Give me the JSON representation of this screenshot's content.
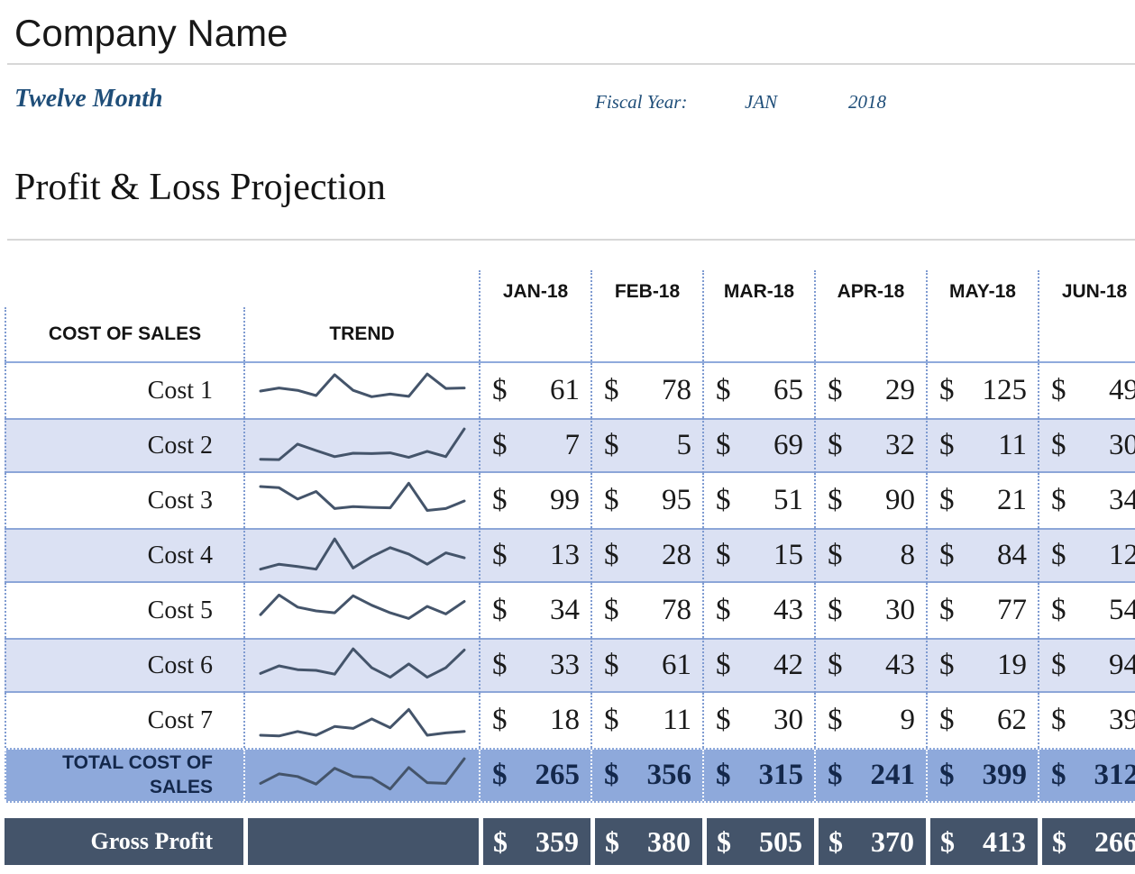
{
  "header": {
    "company_name": "Company Name",
    "subtitle": "Twelve Month",
    "fiscal_year_label": "Fiscal Year:",
    "fiscal_month": "JAN",
    "fiscal_year": "2018",
    "page_title": "Profit & Loss Projection"
  },
  "table": {
    "row_header": "COST OF SALES",
    "trend_header": "TREND",
    "months": [
      "JAN-18",
      "FEB-18",
      "MAR-18",
      "APR-18",
      "MAY-18",
      "JUN-18"
    ],
    "currency": "$",
    "rows": [
      {
        "label": "Cost 1",
        "values": [
          61,
          78,
          65,
          29,
          125,
          49
        ],
        "sparkline": [
          50,
          58,
          52,
          38,
          93,
          52,
          35,
          42,
          36,
          95,
          57,
          58
        ]
      },
      {
        "label": "Cost 2",
        "values": [
          7,
          5,
          69,
          32,
          11,
          30
        ],
        "sparkline": [
          15,
          14,
          55,
          38,
          22,
          31,
          30,
          32,
          20,
          36,
          22,
          95
        ]
      },
      {
        "label": "Cost 3",
        "values": [
          99,
          95,
          51,
          90,
          21,
          34
        ],
        "sparkline": [
          88,
          85,
          55,
          75,
          30,
          35,
          33,
          32,
          97,
          25,
          30,
          50
        ]
      },
      {
        "label": "Cost 4",
        "values": [
          13,
          28,
          15,
          8,
          84,
          12
        ],
        "sparkline": [
          15,
          28,
          22,
          15,
          95,
          18,
          48,
          72,
          55,
          28,
          58,
          45
        ]
      },
      {
        "label": "Cost 5",
        "values": [
          34,
          78,
          43,
          30,
          77,
          54
        ],
        "sparkline": [
          40,
          92,
          60,
          50,
          45,
          90,
          65,
          45,
          30,
          62,
          42,
          75
        ]
      },
      {
        "label": "Cost 6",
        "values": [
          33,
          61,
          42,
          43,
          19,
          94
        ],
        "sparkline": [
          30,
          50,
          40,
          38,
          28,
          95,
          45,
          20,
          55,
          20,
          45,
          92
        ]
      },
      {
        "label": "Cost 7",
        "values": [
          18,
          11,
          30,
          9,
          62,
          39
        ],
        "sparkline": [
          12,
          10,
          22,
          12,
          35,
          30,
          55,
          32,
          80,
          12,
          18,
          22
        ]
      }
    ],
    "total_row": {
      "label": "TOTAL COST OF SALES",
      "values": [
        265,
        356,
        315,
        241,
        399,
        312
      ],
      "sparkline": [
        30,
        55,
        48,
        28,
        70,
        48,
        45,
        15,
        72,
        32,
        30,
        95
      ]
    },
    "gross_row": {
      "label": "Gross Profit",
      "values": [
        359,
        380,
        505,
        370,
        413,
        266
      ]
    }
  },
  "colors": {
    "accent": "#8faadc",
    "dot": "#7f9bd1",
    "stripe": "#dbe1f3",
    "stripe_border": "#8ca6d8",
    "total_bg": "#8ea9db",
    "dark": "#44546a",
    "navy": "#14284b",
    "blue": "#1f4e79",
    "rule": "#d7d7d7",
    "sparkline": "#44546a",
    "ink": "#1a1a1a"
  }
}
